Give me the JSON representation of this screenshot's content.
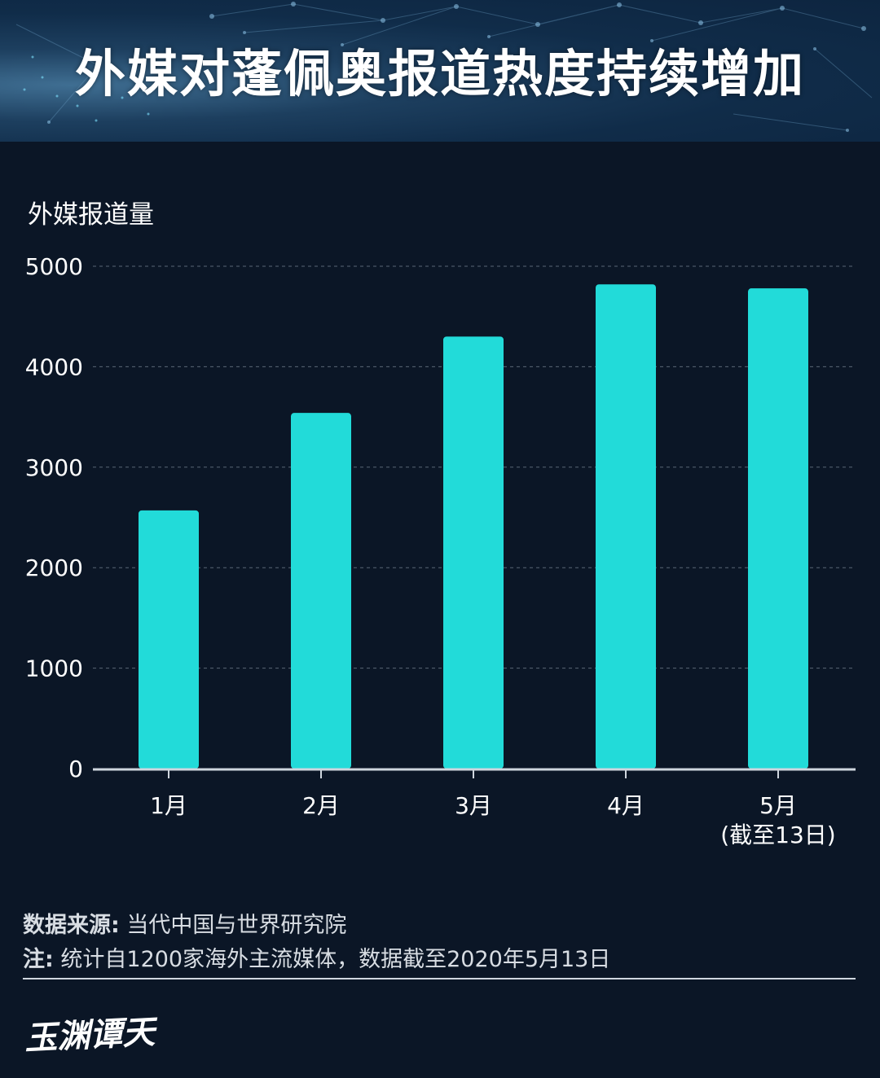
{
  "header": {
    "title": "外媒对蓬佩奥报道热度持续增加"
  },
  "chart_data": {
    "type": "bar",
    "title": "外媒对蓬佩奥报道热度持续增加",
    "ylabel": "外媒报道量",
    "xlabel": "",
    "categories": [
      "1月",
      "2月",
      "3月",
      "4月",
      "5月"
    ],
    "category_sublabels": [
      "",
      "",
      "",
      "",
      "(截至13日)"
    ],
    "values": [
      2570,
      3540,
      4300,
      4820,
      4780
    ],
    "ylim": [
      0,
      5000
    ],
    "yticks": [
      0,
      1000,
      2000,
      3000,
      4000,
      5000
    ],
    "grid": true,
    "bar_color": "#22dbd9"
  },
  "footer": {
    "source_label": "数据来源:",
    "source_text": " 当代中国与世界研究院",
    "note_label": "注:",
    "note_text": " 统计自1200家海外主流媒体，数据截至2020年5月13日",
    "logo_text": "玉渊谭天"
  },
  "colors": {
    "background": "#0b1626",
    "bar": "#22dbd9",
    "axis": "#cfd6de",
    "grid": "#5a6675"
  }
}
